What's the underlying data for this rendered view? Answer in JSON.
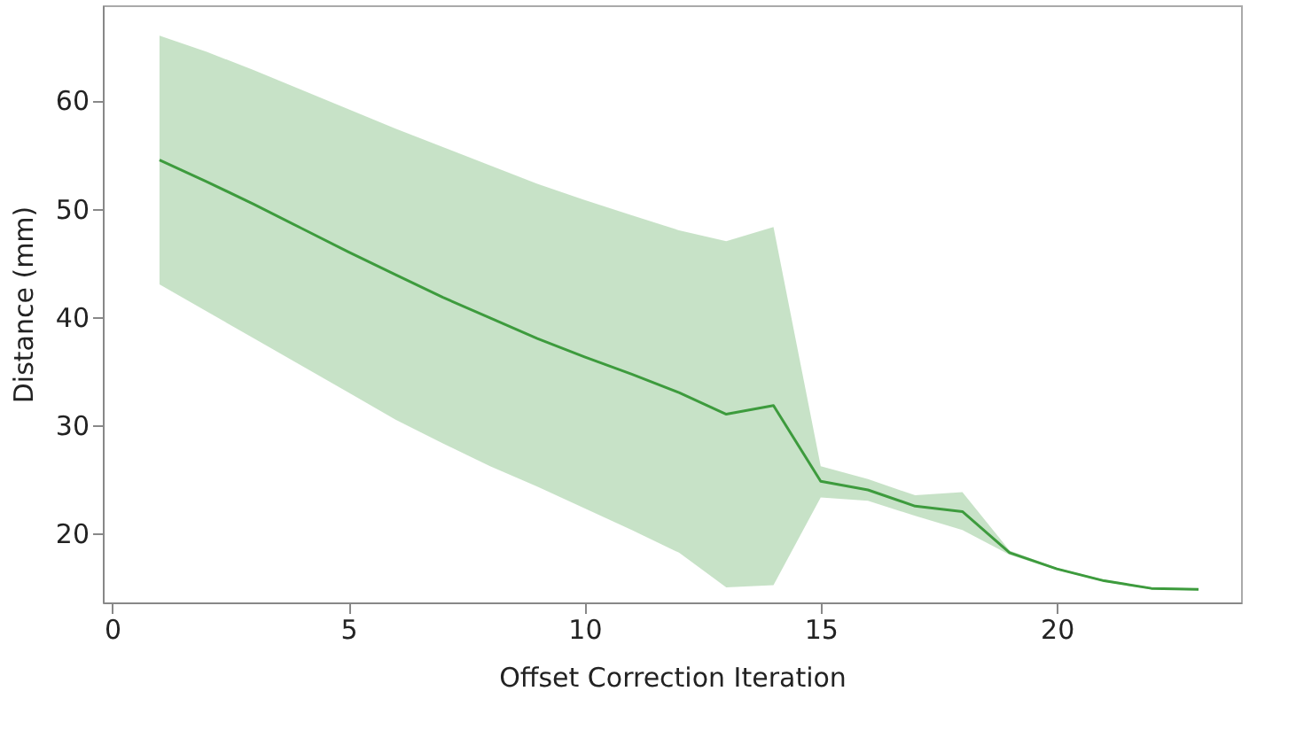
{
  "chart_data": {
    "type": "line",
    "xlabel": "Offset Correction Iteration",
    "ylabel": "Distance (mm)",
    "x": [
      1,
      2,
      3,
      4,
      5,
      6,
      7,
      8,
      9,
      10,
      11,
      12,
      13,
      14,
      15,
      16,
      17,
      18,
      19,
      20,
      21,
      22,
      23
    ],
    "series": [
      {
        "color": "#3d9b3d",
        "values": [
          54.5,
          52.5,
          50.4,
          48.2,
          46,
          43.9,
          41.8,
          39.9,
          38,
          36.3,
          34.7,
          33,
          31,
          31.8,
          24.8,
          24,
          22.5,
          22,
          18.2,
          16.7,
          15.6,
          14.9,
          14.8
        ],
        "upper": [
          66,
          64.5,
          62.8,
          61,
          59.2,
          57.4,
          55.7,
          54,
          52.3,
          50.8,
          49.4,
          48,
          47,
          48.3,
          26.2,
          25,
          23.5,
          23.8,
          18.4,
          16.8,
          15.7,
          15,
          14.9
        ],
        "lower": [
          43,
          40.5,
          38,
          35.5,
          33,
          30.5,
          28.3,
          26.2,
          24.3,
          22.3,
          20.3,
          18.2,
          15,
          15.2,
          23.3,
          23,
          21.6,
          20.3,
          18,
          16.6,
          15.5,
          14.8,
          14.7
        ]
      }
    ],
    "xlim": [
      -0.2,
      23.9
    ],
    "xticks": [
      0,
      5,
      10,
      15,
      20
    ],
    "ylim": [
      13.6,
      68.8
    ],
    "yticks": [
      20,
      30,
      40,
      50,
      60
    ],
    "grid": false,
    "line_style": "solid"
  }
}
